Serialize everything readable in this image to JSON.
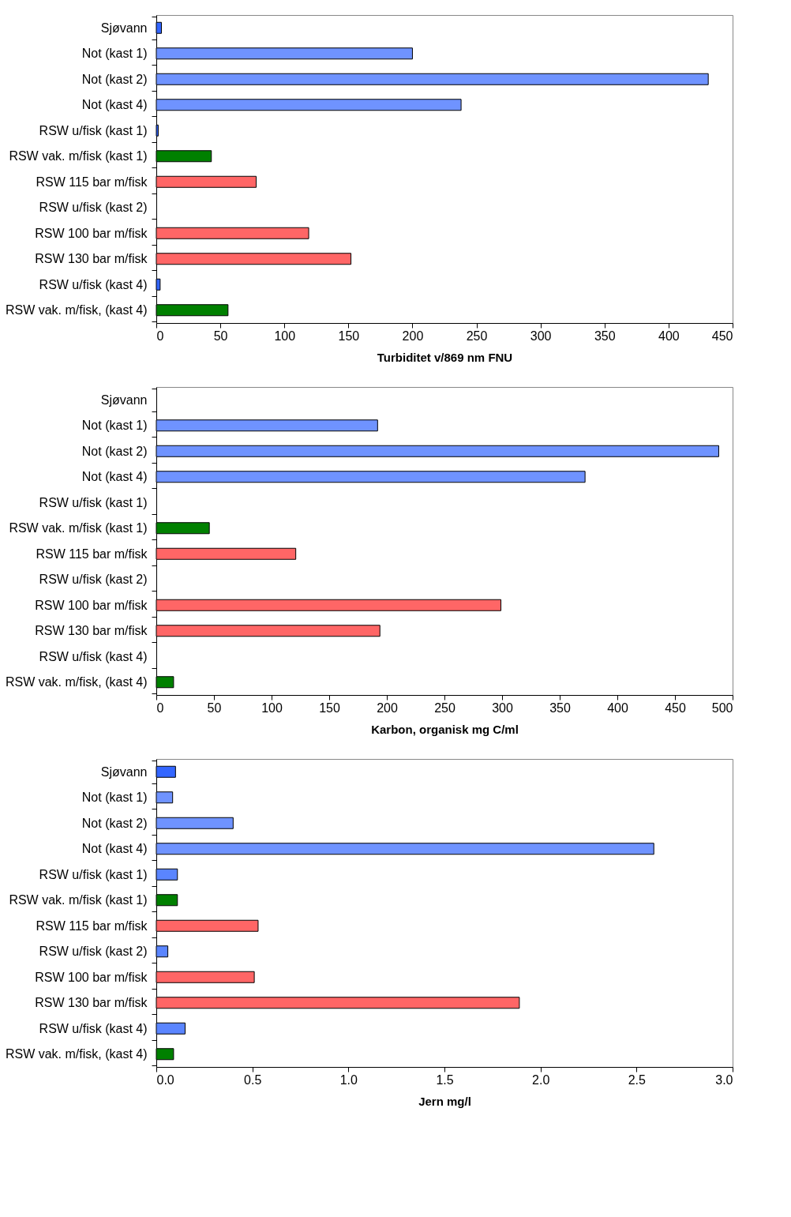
{
  "chart_data": [
    {
      "type": "bar",
      "orientation": "horizontal",
      "xlabel": "Turbiditet v/869 nm FNU",
      "categories": [
        "Sjøvann",
        "Not (kast 1)",
        "Not (kast 2)",
        "Not (kast 4)",
        "RSW u/fisk (kast 1)",
        "RSW vak. m/fisk (kast 1)",
        "RSW 115 bar m/fisk",
        "RSW u/fisk (kast 2)",
        "RSW 100 bar m/fisk",
        "RSW 130 bar m/fisk",
        "RSW u/fisk (kast 4)",
        "RSW vak. m/fisk, (kast 4)"
      ],
      "values": [
        4,
        200,
        431,
        238,
        1.5,
        43,
        78,
        null,
        119,
        152,
        3,
        56
      ],
      "colors": [
        "#3366ff",
        "#6f93ff",
        "#6f93ff",
        "#6f93ff",
        "#3366ff",
        "#008000",
        "#ff6666",
        "#3366ff",
        "#ff6666",
        "#ff6666",
        "#3366ff",
        "#008000"
      ],
      "xlim": [
        0,
        450
      ],
      "xticks": [
        0,
        50,
        100,
        150,
        200,
        250,
        300,
        350,
        400,
        450
      ],
      "grid": false
    },
    {
      "type": "bar",
      "orientation": "horizontal",
      "xlabel": "Karbon, organisk mg C/ml",
      "categories": [
        "Sjøvann",
        "Not (kast 1)",
        "Not (kast 2)",
        "Not (kast 4)",
        "RSW u/fisk (kast 1)",
        "RSW vak. m/fisk (kast 1)",
        "RSW 115 bar m/fisk",
        "RSW u/fisk (kast 2)",
        "RSW 100 bar m/fisk",
        "RSW 130 bar m/fisk",
        "RSW u/fisk (kast 4)",
        "RSW vak. m/fisk, (kast 4)"
      ],
      "values": [
        null,
        192,
        488,
        372,
        null,
        46,
        121,
        null,
        299,
        194,
        null,
        15
      ],
      "colors": [
        "#3366ff",
        "#6f93ff",
        "#6f93ff",
        "#6f93ff",
        "#3366ff",
        "#008000",
        "#ff6666",
        "#3366ff",
        "#ff6666",
        "#ff6666",
        "#3366ff",
        "#008000"
      ],
      "xlim": [
        0,
        500
      ],
      "xticks": [
        0,
        50,
        100,
        150,
        200,
        250,
        300,
        350,
        400,
        450,
        500
      ],
      "grid": false
    },
    {
      "type": "bar",
      "orientation": "horizontal",
      "xlabel": "Jern mg/l",
      "categories": [
        "Sjøvann",
        "Not (kast 1)",
        "Not (kast 2)",
        "Not (kast 4)",
        "RSW u/fisk (kast 1)",
        "RSW vak. m/fisk (kast 1)",
        "RSW 115 bar m/fisk",
        "RSW u/fisk (kast 2)",
        "RSW 100 bar m/fisk",
        "RSW 130 bar m/fisk",
        "RSW u/fisk (kast 4)",
        "RSW vak. m/fisk, (kast 4)"
      ],
      "values": [
        0.1,
        0.085,
        0.4,
        2.59,
        0.11,
        0.11,
        0.53,
        0.06,
        0.51,
        1.89,
        0.15,
        0.09
      ],
      "colors": [
        "#3366ff",
        "#6f93ff",
        "#6f93ff",
        "#6f93ff",
        "#5a85ff",
        "#008000",
        "#ff6666",
        "#5a85ff",
        "#ff6666",
        "#ff6666",
        "#5a85ff",
        "#008000"
      ],
      "xlim": [
        0,
        3.0
      ],
      "xticks": [
        {
          "value": 0,
          "label": "0.0"
        },
        {
          "value": 0.5,
          "label": "0.5"
        },
        {
          "value": 1.0,
          "label": "1.0"
        },
        {
          "value": 1.5,
          "label": "1.5"
        },
        {
          "value": 2.0,
          "label": "2.0"
        },
        {
          "value": 2.5,
          "label": "2.5"
        },
        {
          "value": 3.0,
          "label": "3.0"
        }
      ],
      "grid": false
    }
  ]
}
